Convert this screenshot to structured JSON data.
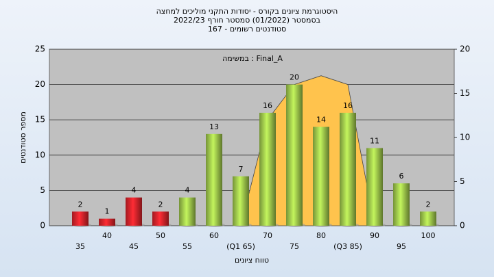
{
  "chart_data": {
    "type": "bar",
    "title": [
      "היסטוגרמת ציונים בקורס - יסודות התקני מוליכים למחצה",
      "בסמסטר  (01/2022)  סמסטר חורף 2022/23",
      "סטודנטים רשומים - 167"
    ],
    "annotation": "במשימה : Final_A",
    "x_label": "טווח ציונים",
    "y_label": "מספר סטודנטים",
    "categories": [
      "35",
      "40",
      "45",
      "50",
      "55",
      "60",
      "(Q1 65)",
      "70",
      "75",
      "80",
      "(Q3 85)",
      "90",
      "95",
      "100"
    ],
    "series": [
      {
        "values": [
          2,
          1,
          4,
          2,
          4,
          13,
          7,
          16,
          20,
          14,
          16,
          11,
          6,
          2
        ],
        "colors": [
          "#d8232a",
          "#d8232a",
          "#d8232a",
          "#d8232a",
          "#9cc44a",
          "#9cc44a",
          "#9cc44a",
          "#9cc44a",
          "#9cc44a",
          "#9cc44a",
          "#9cc44a",
          "#9cc44a",
          "#9cc44a",
          "#9cc44a"
        ]
      },
      {
        "type": "area",
        "axis": "y2",
        "color": "#ffc34d",
        "values": [
          null,
          null,
          null,
          null,
          null,
          null,
          0,
          12,
          16,
          17,
          16,
          0,
          null,
          null
        ]
      }
    ],
    "ylim": [
      0,
      25
    ],
    "yticks": [
      0,
      5,
      10,
      15,
      20,
      25
    ],
    "y2lim": [
      0,
      20
    ],
    "y2ticks": [
      0,
      5,
      10,
      15,
      20
    ],
    "grid": true
  }
}
